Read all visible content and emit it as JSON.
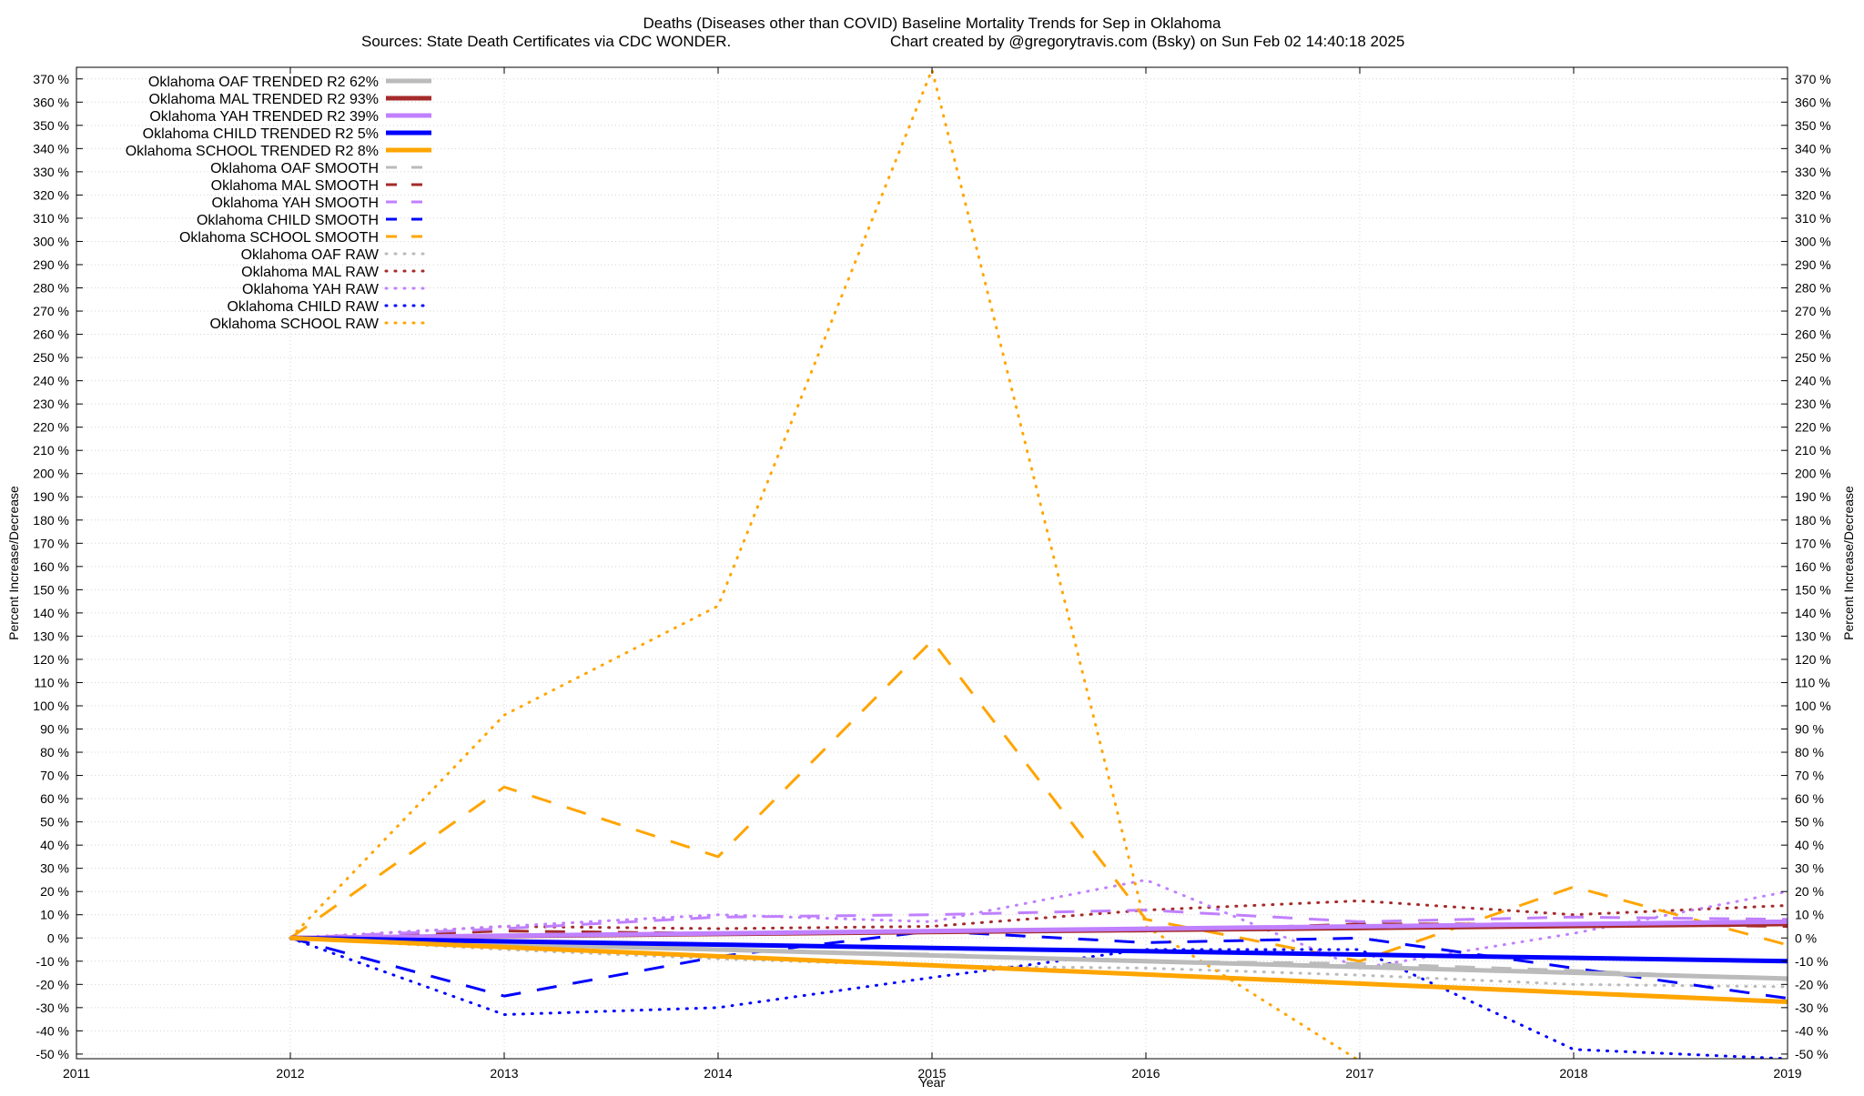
{
  "chart_data": {
    "type": "line",
    "title": "Deaths (Diseases other than COVID)  Baseline Mortality Trends for Sep in Oklahoma",
    "subtitle_left": "Sources: State Death Certificates via CDC WONDER.",
    "subtitle_right": "Chart created by @gregorytravis.com (Bsky) on Sun Feb 02 14:40:18 2025",
    "xlabel": "Year",
    "ylabel_left": "Percent Increase/Decrease",
    "ylabel_right": "Percent Increase/Decrease",
    "xlim": [
      2011,
      2019
    ],
    "ylim": [
      -52,
      375
    ],
    "x_ticks": [
      "2011",
      "2012",
      "2013",
      "2014",
      "2015",
      "2016",
      "2017",
      "2018",
      "2019"
    ],
    "y_ticks": [
      "370 %",
      "360 %",
      "350 %",
      "340 %",
      "330 %",
      "320 %",
      "310 %",
      "300 %",
      "290 %",
      "280 %",
      "270 %",
      "260 %",
      "250 %",
      "240 %",
      "230 %",
      "220 %",
      "210 %",
      "200 %",
      "190 %",
      "180 %",
      "170 %",
      "160 %",
      "150 %",
      "140 %",
      "130 %",
      "120 %",
      "110 %",
      "100 %",
      "90 %",
      "80 %",
      "70 %",
      "60 %",
      "50 %",
      "40 %",
      "30 %",
      "20 %",
      "10 %",
      "0 %",
      "-10 %",
      "-20 %",
      "-30 %",
      "-40 %",
      "-50 %"
    ],
    "grid": true,
    "legend_position": "top-left",
    "series": [
      {
        "name": "Oklahoma OAF TRENDED R2  62%",
        "style": "trend",
        "color": "#bbbbbb",
        "x": [
          2012,
          2019
        ],
        "y": [
          0,
          -17.5
        ]
      },
      {
        "name": "Oklahoma MAL TRENDED R2  93%",
        "style": "trend",
        "color": "#a52a2a",
        "x": [
          2012,
          2019
        ],
        "y": [
          0,
          6
        ]
      },
      {
        "name": "Oklahoma YAH TRENDED R2  39%",
        "style": "trend",
        "color": "#c080ff",
        "x": [
          2012,
          2019
        ],
        "y": [
          0,
          7
        ]
      },
      {
        "name": "Oklahoma CHILD TRENDED R2  5%",
        "style": "trend",
        "color": "#0000ff",
        "x": [
          2012,
          2019
        ],
        "y": [
          0,
          -10
        ]
      },
      {
        "name": "Oklahoma SCHOOL TRENDED R2  8%",
        "style": "trend",
        "color": "#ffa500",
        "x": [
          2012,
          2019
        ],
        "y": [
          0,
          -27.5
        ]
      },
      {
        "name": "Oklahoma OAF SMOOTH",
        "style": "smooth",
        "color": "#bbbbbb",
        "x": [
          2012,
          2013,
          2014,
          2015,
          2016,
          2017,
          2018,
          2019
        ],
        "y": [
          0,
          -3,
          -5,
          -7,
          -10,
          -11,
          -14,
          -18
        ]
      },
      {
        "name": "Oklahoma MAL SMOOTH",
        "style": "smooth",
        "color": "#a52a2a",
        "x": [
          2012,
          2013,
          2014,
          2015,
          2016,
          2017,
          2018,
          2019
        ],
        "y": [
          0,
          3,
          2,
          3,
          3,
          6,
          6,
          5
        ]
      },
      {
        "name": "Oklahoma YAH SMOOTH",
        "style": "smooth",
        "color": "#c080ff",
        "x": [
          2012,
          2013,
          2014,
          2015,
          2016,
          2017,
          2018,
          2019
        ],
        "y": [
          0,
          4,
          9,
          10,
          12,
          7,
          9,
          8
        ]
      },
      {
        "name": "Oklahoma CHILD SMOOTH",
        "style": "smooth",
        "color": "#0000ff",
        "x": [
          2012,
          2013,
          2014,
          2015,
          2016,
          2017,
          2018,
          2019
        ],
        "y": [
          0,
          -25,
          -8,
          3,
          -2,
          0,
          -13,
          -26
        ]
      },
      {
        "name": "Oklahoma SCHOOL SMOOTH",
        "style": "smooth",
        "color": "#ffa500",
        "x": [
          2012,
          2013,
          2014,
          2015,
          2016,
          2017,
          2018,
          2019
        ],
        "y": [
          0,
          65,
          35,
          128,
          8,
          -10,
          22,
          -3
        ]
      },
      {
        "name": "Oklahoma OAF RAW",
        "style": "raw",
        "color": "#bbbbbb",
        "x": [
          2012,
          2013,
          2014,
          2015,
          2016,
          2017,
          2018,
          2019
        ],
        "y": [
          0,
          -5,
          -9,
          -12,
          -13,
          -16,
          -20,
          -21
        ]
      },
      {
        "name": "Oklahoma MAL RAW",
        "style": "raw",
        "color": "#a52a2a",
        "x": [
          2012,
          2013,
          2014,
          2015,
          2016,
          2017,
          2018,
          2019
        ],
        "y": [
          0,
          5,
          4,
          5,
          12,
          16,
          10,
          14
        ]
      },
      {
        "name": "Oklahoma YAH RAW",
        "style": "raw",
        "color": "#c080ff",
        "x": [
          2012,
          2013,
          2014,
          2015,
          2016,
          2017,
          2018,
          2019
        ],
        "y": [
          0,
          5,
          10,
          7,
          25,
          -13,
          2,
          20
        ]
      },
      {
        "name": "Oklahoma CHILD RAW",
        "style": "raw",
        "color": "#0000ff",
        "x": [
          2012,
          2013,
          2014,
          2015,
          2016,
          2017,
          2018,
          2019
        ],
        "y": [
          0,
          -33,
          -30,
          -17,
          -5,
          -5,
          -48,
          -52
        ]
      },
      {
        "name": "Oklahoma SCHOOL RAW",
        "style": "raw",
        "color": "#ffa500",
        "x": [
          2012,
          2013,
          2014,
          2015,
          2016,
          2017,
          2018,
          2019
        ],
        "y": [
          0,
          96,
          143,
          374,
          5,
          -53,
          -53,
          -53
        ]
      }
    ]
  }
}
